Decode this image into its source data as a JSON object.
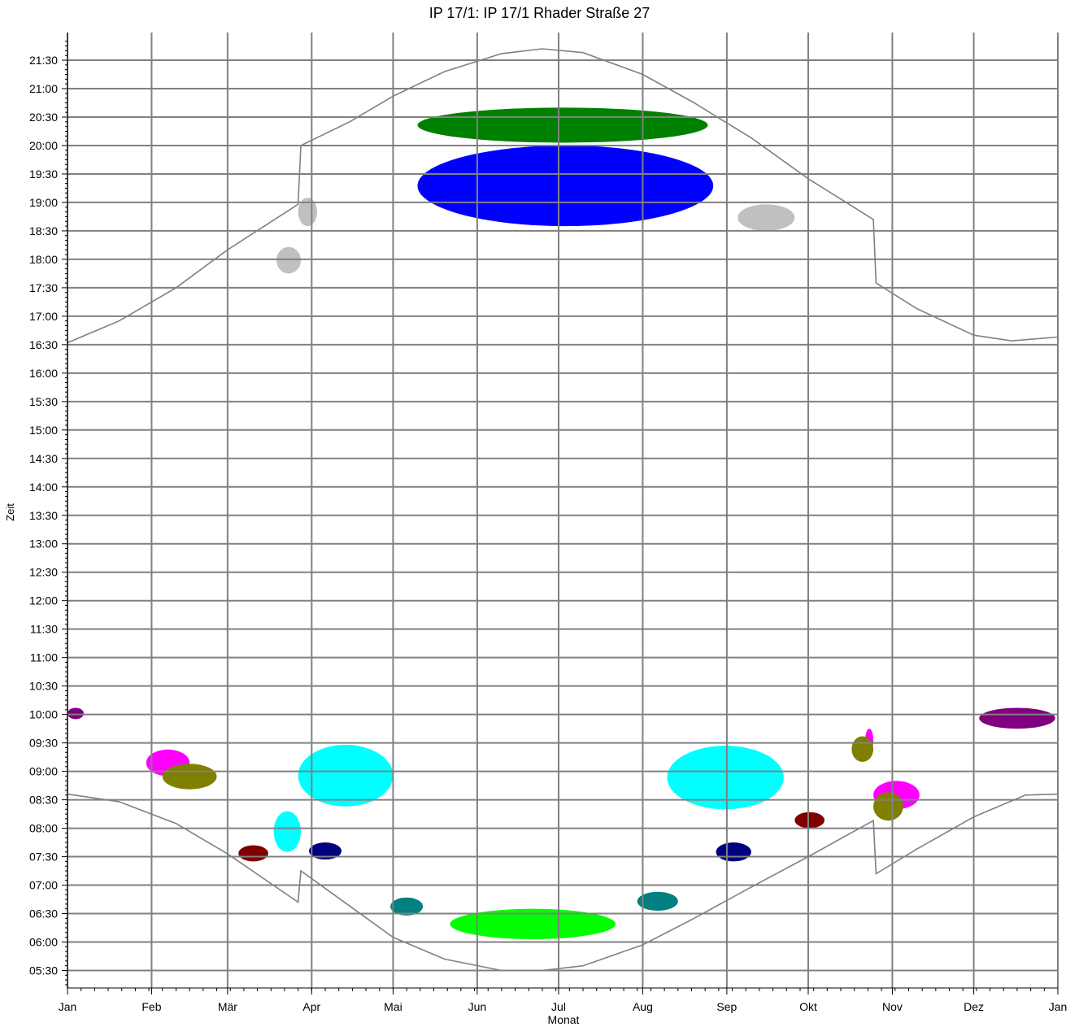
{
  "chart_data": {
    "type": "heatmap",
    "title": "IP 17/1: IP 17/1 Rhader Straße 27",
    "xlabel": "Monat",
    "ylabel": "Zeit",
    "x_tick_labels": [
      "Jan",
      "Feb",
      "Mär",
      "Apr",
      "Mai",
      "Jun",
      "Jul",
      "Aug",
      "Sep",
      "Okt",
      "Nov",
      "Dez",
      "Jan"
    ],
    "y_tick_labels": [
      "05:30",
      "06:00",
      "06:30",
      "07:00",
      "07:30",
      "08:00",
      "08:30",
      "09:00",
      "09:30",
      "10:00",
      "10:30",
      "11:00",
      "11:30",
      "12:00",
      "12:30",
      "13:00",
      "13:30",
      "14:00",
      "14:30",
      "15:00",
      "15:30",
      "16:00",
      "16:30",
      "17:00",
      "17:30",
      "18:00",
      "18:30",
      "19:00",
      "19:30",
      "20:00",
      "20:30",
      "21:00",
      "21:30"
    ],
    "xlim": [
      "Jan 1",
      "Jan 1 (next)"
    ],
    "ylim": [
      "05:15",
      "21:50"
    ],
    "grid": true,
    "colors": {
      "grid": "#808080",
      "sun_curve": "#808080",
      "gray": "#c0c0c0",
      "green": "#008000",
      "blue": "#0000ff",
      "purple": "#800080",
      "magenta": "#ff00ff",
      "olive": "#808000",
      "cyan": "#00ffff",
      "maroon": "#800000",
      "navy": "#000080",
      "teal": "#008080",
      "lime": "#00ff00"
    },
    "sunset_curve": [
      [
        "Jan 1",
        "16:32"
      ],
      [
        "Jan 20",
        "16:55"
      ],
      [
        "Feb 10",
        "17:30"
      ],
      [
        "Mär 1",
        "18:10"
      ],
      [
        "Mär 27",
        "18:58"
      ],
      [
        "Mär 28",
        "20:00"
      ],
      [
        "Apr 15",
        "20:25"
      ],
      [
        "Mai 1",
        "20:52"
      ],
      [
        "Mai 20",
        "21:18"
      ],
      [
        "Jun 10",
        "21:37"
      ],
      [
        "Jun 25",
        "21:42"
      ],
      [
        "Jul 10",
        "21:38"
      ],
      [
        "Aug 1",
        "21:15"
      ],
      [
        "Aug 20",
        "20:45"
      ],
      [
        "Sep 10",
        "20:08"
      ],
      [
        "Okt 1",
        "19:25"
      ],
      [
        "Okt 25",
        "18:42"
      ],
      [
        "Okt 26",
        "17:35"
      ],
      [
        "Nov 10",
        "17:08"
      ],
      [
        "Dez 1",
        "16:40"
      ],
      [
        "Dez 15",
        "16:34"
      ],
      [
        "Jan 1 (next)",
        "16:38"
      ]
    ],
    "sunrise_curve": [
      [
        "Jan 1",
        "08:36"
      ],
      [
        "Jan 20",
        "08:28"
      ],
      [
        "Feb 10",
        "08:05"
      ],
      [
        "Mär 1",
        "07:33"
      ],
      [
        "Mär 27",
        "06:42"
      ],
      [
        "Mär 28",
        "07:15"
      ],
      [
        "Apr 15",
        "06:38"
      ],
      [
        "Mai 1",
        "06:05"
      ],
      [
        "Mai 20",
        "05:42"
      ],
      [
        "Jun 10",
        "05:30"
      ],
      [
        "Jun 25",
        "05:30"
      ],
      [
        "Jul 10",
        "05:35"
      ],
      [
        "Aug 1",
        "05:57"
      ],
      [
        "Aug 20",
        "06:25"
      ],
      [
        "Sep 10",
        "06:58"
      ],
      [
        "Okt 1",
        "07:30"
      ],
      [
        "Okt 25",
        "08:08"
      ],
      [
        "Okt 26",
        "07:12"
      ],
      [
        "Nov 10",
        "07:38"
      ],
      [
        "Dez 1",
        "08:12"
      ],
      [
        "Dez 20",
        "08:35"
      ],
      [
        "Jan 1 (next)",
        "08:36"
      ]
    ],
    "regions": [
      {
        "color": "green",
        "start": "Mai 10",
        "end": "Aug 25",
        "time_from": "20:03",
        "time_to": "20:40"
      },
      {
        "color": "blue",
        "start": "Mai 10",
        "end": "Aug 27",
        "time_from": "18:35",
        "time_to": "20:00"
      },
      {
        "color": "gray",
        "start": "Mär 27",
        "end": "Apr 3",
        "time_from": "18:35",
        "time_to": "19:05"
      },
      {
        "color": "gray",
        "start": "Mär 19",
        "end": "Mär 28",
        "time_from": "17:45",
        "time_to": "18:13"
      },
      {
        "color": "gray",
        "start": "Sep 5",
        "end": "Sep 26",
        "time_from": "18:30",
        "time_to": "18:58"
      },
      {
        "color": "purple",
        "start": "Jan 1",
        "end": "Jan 7",
        "time_from": "09:55",
        "time_to": "10:07"
      },
      {
        "color": "purple",
        "start": "Dez 3",
        "end": "Dez 31",
        "time_from": "09:45",
        "time_to": "10:07"
      },
      {
        "color": "magenta",
        "start": "Jan 30",
        "end": "Feb 15",
        "time_from": "08:55",
        "time_to": "09:23"
      },
      {
        "color": "olive",
        "start": "Feb 5",
        "end": "Feb 25",
        "time_from": "08:41",
        "time_to": "09:08"
      },
      {
        "color": "cyan",
        "start": "Mär 27",
        "end": "Mai 1",
        "time_from": "08:23",
        "time_to": "09:28"
      },
      {
        "color": "cyan",
        "start": "Mär 18",
        "end": "Mär 28",
        "time_from": "07:35",
        "time_to": "08:18"
      },
      {
        "color": "cyan",
        "start": "Aug 10",
        "end": "Sep 22",
        "time_from": "08:20",
        "time_to": "09:27"
      },
      {
        "color": "maroon",
        "start": "Mär 5",
        "end": "Mär 16",
        "time_from": "07:25",
        "time_to": "07:42"
      },
      {
        "color": "maroon",
        "start": "Sep 26",
        "end": "Okt 7",
        "time_from": "08:00",
        "time_to": "08:17"
      },
      {
        "color": "navy",
        "start": "Mär 31",
        "end": "Apr 12",
        "time_from": "07:27",
        "time_to": "07:45"
      },
      {
        "color": "navy",
        "start": "Aug 28",
        "end": "Sep 10",
        "time_from": "07:25",
        "time_to": "07:45"
      },
      {
        "color": "teal",
        "start": "Apr 30",
        "end": "Mai 12",
        "time_from": "06:28",
        "time_to": "06:47"
      },
      {
        "color": "teal",
        "start": "Jul 30",
        "end": "Aug 14",
        "time_from": "06:33",
        "time_to": "06:53"
      },
      {
        "color": "lime",
        "start": "Mai 22",
        "end": "Jul 22",
        "time_from": "06:03",
        "time_to": "06:35"
      },
      {
        "color": "magenta",
        "start": "Okt 22",
        "end": "Okt 25",
        "time_from": "09:20",
        "time_to": "09:45"
      },
      {
        "color": "olive",
        "start": "Okt 17",
        "end": "Okt 25",
        "time_from": "09:10",
        "time_to": "09:37"
      },
      {
        "color": "magenta",
        "start": "Okt 25",
        "end": "Nov 11",
        "time_from": "08:20",
        "time_to": "08:50"
      },
      {
        "color": "olive",
        "start": "Okt 25",
        "end": "Nov 5",
        "time_from": "08:08",
        "time_to": "08:38"
      }
    ]
  }
}
